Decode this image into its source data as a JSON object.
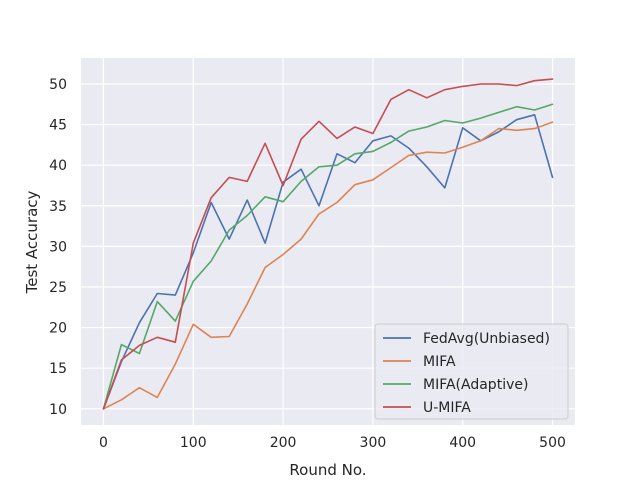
{
  "chart_data": {
    "type": "line",
    "title": "",
    "xlabel": "Round No.",
    "ylabel": "Test Accuracy",
    "xlim": [
      -25,
      525
    ],
    "ylim": [
      8.0,
      53.2
    ],
    "xticks": [
      0,
      100,
      200,
      300,
      400,
      500
    ],
    "yticks": [
      10,
      15,
      20,
      25,
      30,
      35,
      40,
      45,
      50
    ],
    "grid": true,
    "legend_position": "lower-right",
    "background": "#eaeaf2",
    "series": [
      {
        "name": "FedAvg(Unbiased)",
        "color": "#4c72b0",
        "x": [
          0,
          20,
          40,
          60,
          80,
          100,
          120,
          140,
          160,
          180,
          200,
          220,
          240,
          260,
          280,
          300,
          320,
          340,
          360,
          380,
          400,
          420,
          440,
          460,
          480,
          500
        ],
        "y": [
          10.0,
          15.8,
          20.6,
          24.2,
          24.0,
          29.2,
          35.4,
          30.9,
          35.7,
          30.4,
          37.9,
          39.5,
          35.0,
          41.4,
          40.3,
          43.0,
          43.6,
          42.1,
          39.8,
          37.2,
          44.6,
          43.0,
          44.1,
          45.6,
          46.2,
          38.5
        ]
      },
      {
        "name": "MIFA",
        "color": "#dd8452",
        "x": [
          0,
          20,
          40,
          60,
          80,
          100,
          120,
          140,
          160,
          180,
          200,
          220,
          240,
          260,
          280,
          300,
          320,
          340,
          360,
          380,
          400,
          420,
          440,
          460,
          480,
          500
        ],
        "y": [
          10.0,
          11.1,
          12.6,
          11.4,
          15.5,
          20.4,
          18.8,
          18.9,
          22.9,
          27.4,
          29.0,
          30.9,
          34.0,
          35.4,
          37.6,
          38.2,
          39.7,
          41.2,
          41.6,
          41.5,
          42.2,
          43.0,
          44.5,
          44.3,
          44.5,
          45.3
        ]
      },
      {
        "name": "MIFA(Adaptive)",
        "color": "#55a868",
        "x": [
          0,
          20,
          40,
          60,
          80,
          100,
          120,
          140,
          160,
          180,
          200,
          220,
          240,
          260,
          280,
          300,
          320,
          340,
          360,
          380,
          400,
          420,
          440,
          460,
          480,
          500
        ],
        "y": [
          10.0,
          17.9,
          16.8,
          23.2,
          20.8,
          25.7,
          28.2,
          32.0,
          33.8,
          36.1,
          35.5,
          38.0,
          39.8,
          40.0,
          41.4,
          41.7,
          42.8,
          44.2,
          44.7,
          45.5,
          45.2,
          45.8,
          46.5,
          47.2,
          46.8,
          47.5
        ]
      },
      {
        "name": "U-MIFA",
        "color": "#c44e52",
        "x": [
          0,
          20,
          40,
          60,
          80,
          100,
          120,
          140,
          160,
          180,
          200,
          220,
          240,
          260,
          280,
          300,
          320,
          340,
          360,
          380,
          400,
          420,
          440,
          460,
          480,
          500
        ],
        "y": [
          10.0,
          16.0,
          17.8,
          18.8,
          18.2,
          30.4,
          36.0,
          38.5,
          38.0,
          42.7,
          37.5,
          43.2,
          45.4,
          43.3,
          44.7,
          43.9,
          48.1,
          49.3,
          48.3,
          49.3,
          49.7,
          50.0,
          50.0,
          49.8,
          50.4,
          50.6
        ]
      }
    ]
  }
}
